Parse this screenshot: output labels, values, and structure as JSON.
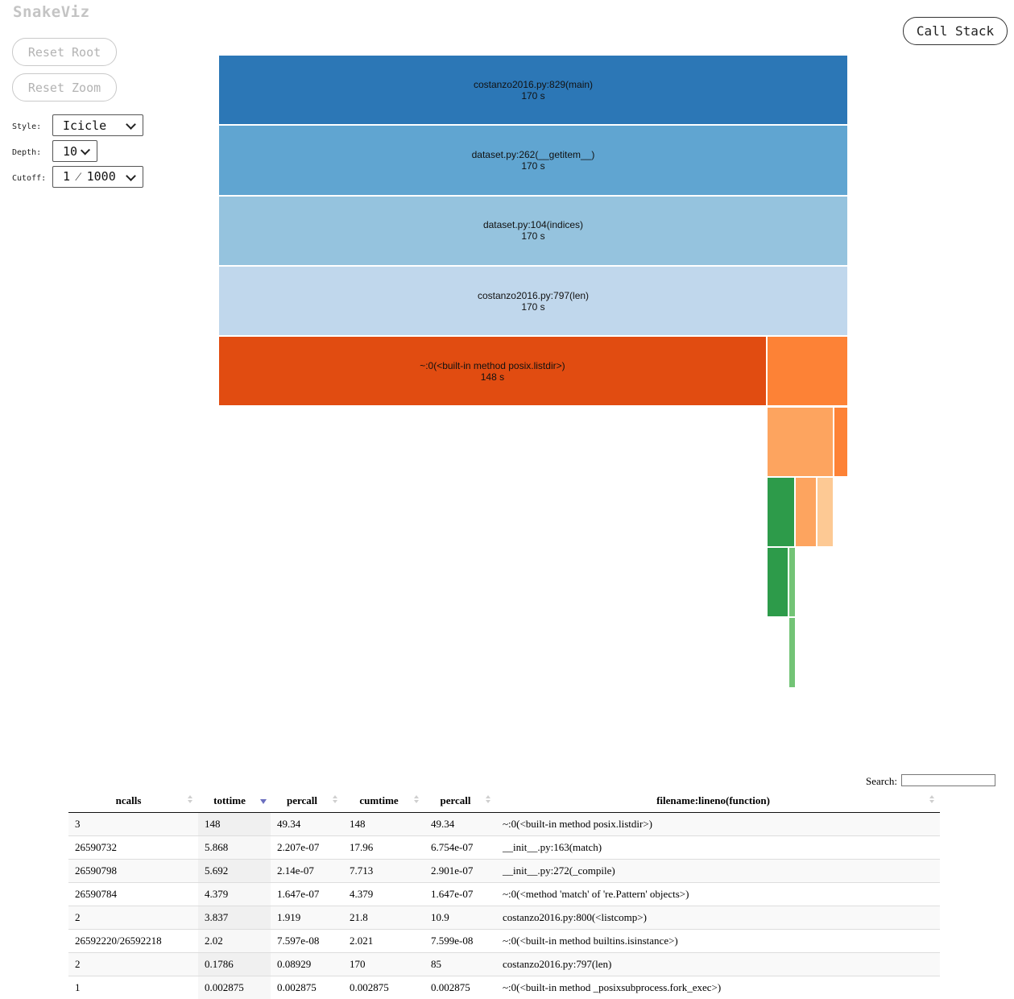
{
  "app_title": "SnakeViz",
  "buttons": {
    "reset_root": "Reset Root",
    "reset_zoom": "Reset Zoom",
    "call_stack": "Call Stack"
  },
  "controls": {
    "style_label": "Style:",
    "style_value": "Icicle",
    "depth_label": "Depth:",
    "depth_value": "10",
    "cutoff_label": "Cutoff:",
    "cutoff_value": "1 ⁄ 1000"
  },
  "icicle": {
    "levels": [
      [
        {
          "label": "costanzo2016.py:829(main)",
          "time": "170 s",
          "start": 0,
          "span": 1,
          "color": "#2c77b6"
        },
        {}
      ],
      [
        {
          "label": "dataset.py:262(__getitem__)",
          "time": "170 s",
          "start": 0,
          "span": 1,
          "color": "#60a5d1"
        }
      ],
      [
        {
          "label": "dataset.py:104(indices)",
          "time": "170 s",
          "start": 0,
          "span": 1,
          "color": "#95c3de"
        }
      ],
      [
        {
          "label": "costanzo2016.py:797(len)",
          "time": "170 s",
          "start": 0,
          "span": 1,
          "color": "#c0d7ec"
        }
      ],
      [
        {
          "label": "~:0(<built-in method posix.listdir>)",
          "time": "148 s",
          "start": 0,
          "span": 0.8706,
          "color": "#e14c11"
        },
        {
          "label": "",
          "time": "",
          "start": 0.8706,
          "span": 0.1294,
          "color": "#fd8236"
        }
      ],
      [
        {
          "label": "",
          "time": "",
          "start": 0.8706,
          "span": 0.1062,
          "color": "#fda45f"
        },
        {
          "label": "",
          "time": "",
          "start": 0.9768,
          "span": 0.0232,
          "color": "#fd8236"
        }
      ],
      [
        {
          "label": "",
          "time": "",
          "start": 0.8706,
          "span": 0.0454,
          "color": "#2d9b4a"
        },
        {
          "label": "",
          "time": "",
          "start": 0.916,
          "span": 0.0346,
          "color": "#fda45f"
        },
        {
          "label": "",
          "time": "",
          "start": 0.9506,
          "span": 0.0262,
          "color": "#fdc994"
        }
      ],
      [
        {
          "label": "",
          "time": "",
          "start": 0.8706,
          "span": 0.0346,
          "color": "#2d9b4a"
        },
        {
          "label": "",
          "time": "",
          "start": 0.9052,
          "span": 0.0115,
          "color": "#73c476"
        }
      ],
      [
        {
          "label": "",
          "time": "",
          "start": 0.9052,
          "span": 0.0115,
          "color": "#73c476"
        }
      ]
    ]
  },
  "search": {
    "label": "Search:",
    "value": ""
  },
  "table": {
    "headers": [
      "ncalls",
      "tottime",
      "percall",
      "cumtime",
      "percall",
      "filename:lineno(function)"
    ],
    "sorted_column": 1,
    "rows": [
      [
        "3",
        "148",
        "49.34",
        "148",
        "49.34",
        "~:0(<built-in method posix.listdir>)"
      ],
      [
        "26590732",
        "5.868",
        "2.207e-07",
        "17.96",
        "6.754e-07",
        "__init__.py:163(match)"
      ],
      [
        "26590798",
        "5.692",
        "2.14e-07",
        "7.713",
        "2.901e-07",
        "__init__.py:272(_compile)"
      ],
      [
        "26590784",
        "4.379",
        "1.647e-07",
        "4.379",
        "1.647e-07",
        "~:0(<method 'match' of 're.Pattern' objects>)"
      ],
      [
        "2",
        "3.837",
        "1.919",
        "21.8",
        "10.9",
        "costanzo2016.py:800(<listcomp>)"
      ],
      [
        "26592220/26592218",
        "2.02",
        "7.597e-08",
        "2.021",
        "7.599e-08",
        "~:0(<built-in method builtins.isinstance>)"
      ],
      [
        "2",
        "0.1786",
        "0.08929",
        "170",
        "85",
        "costanzo2016.py:797(len)"
      ],
      [
        "1",
        "0.002875",
        "0.002875",
        "0.002875",
        "0.002875",
        "~:0(<built-in method _posixsubprocess.fork_exec>)"
      ]
    ]
  }
}
